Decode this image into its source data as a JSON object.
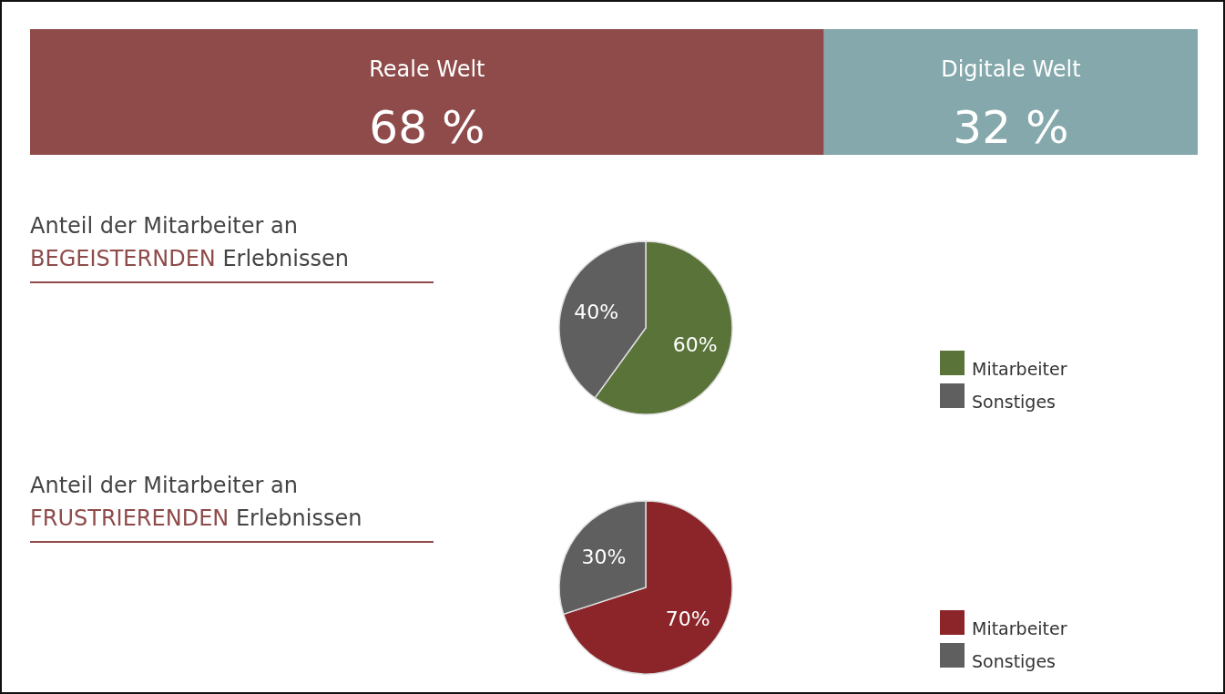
{
  "chart_data": [
    {
      "type": "bar",
      "orientation": "horizontal",
      "stacked": true,
      "categories": [
        null
      ],
      "xlim": [
        0,
        100
      ],
      "tick_labels": false,
      "legend": false,
      "series": [
        {
          "name": "Reale Welt",
          "color": "#8e4b4a",
          "values": [
            68
          ],
          "value_labels": [
            "68 %"
          ]
        },
        {
          "name": "Digitale Welt",
          "color": "#84a8ab",
          "values": [
            32
          ],
          "value_labels": [
            "32 %"
          ]
        }
      ]
    },
    {
      "type": "pie",
      "title": "Anteil der Mitarbeiter an",
      "subtitle": "BEGEISTERNDEN Erlebnissen",
      "categories": [
        "Mitarbeiter",
        "Sonstiges"
      ],
      "values": [
        60,
        40
      ],
      "colors": [
        "#5a7338",
        "#5f5f5f"
      ],
      "value_labels": [
        "60%",
        "40%"
      ],
      "legend": "right"
    },
    {
      "type": "pie",
      "title": "Anteil der Mitarbeiter an",
      "subtitle": "FRUSTRIERENDEN Erlebnissen",
      "categories": [
        "Mitarbeiter",
        "Sonstiges"
      ],
      "values": [
        70,
        30
      ],
      "colors": [
        "#8b2529",
        "#5f5f5f"
      ],
      "value_labels": [
        "70%",
        "30%"
      ],
      "legend": "right"
    }
  ]
}
